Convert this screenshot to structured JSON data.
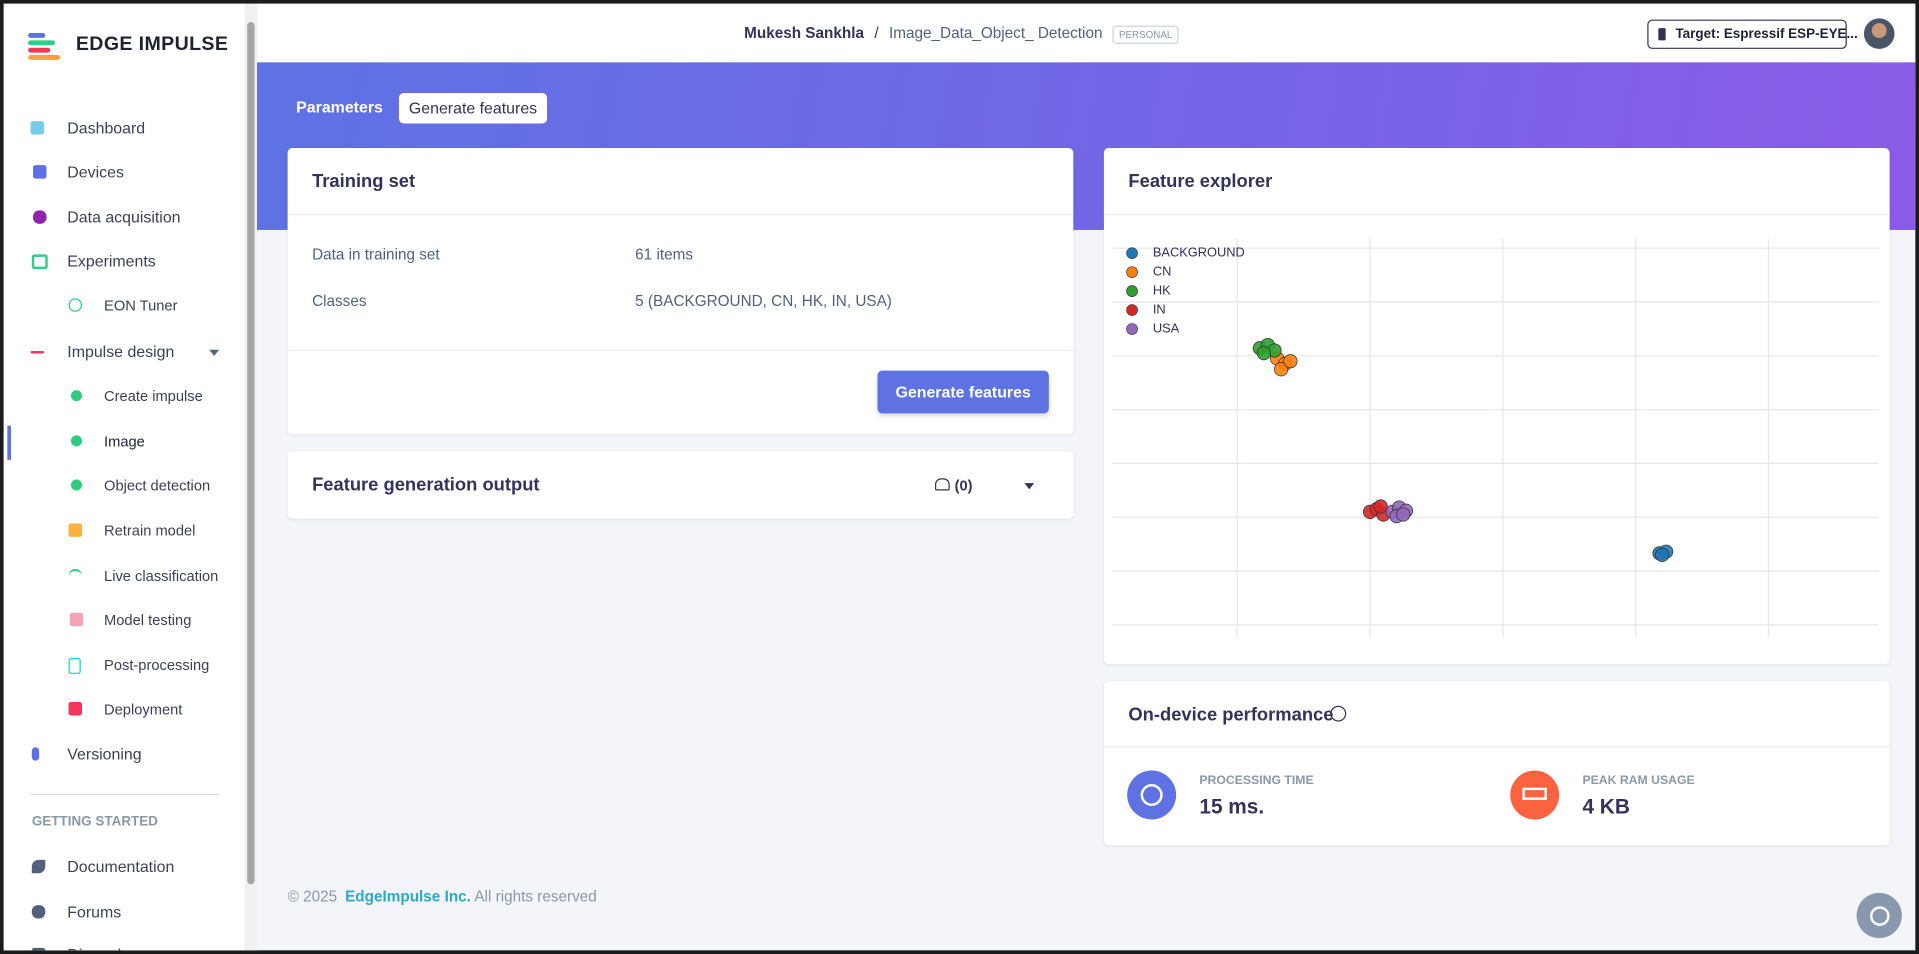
{
  "sidebar": {
    "brand": "EDGE IMPULSE",
    "nav": [
      "Dashboard",
      "Devices",
      "Data acquisition",
      "Experiments",
      "EON Tuner",
      "Impulse design",
      "Create impulse",
      "Image",
      "Object detection",
      "Retrain model",
      "Live classification",
      "Model testing",
      "Post-processing",
      "Deployment",
      "Versioning"
    ],
    "section_title": "GETTING STARTED",
    "help": [
      "Documentation",
      "Forums",
      "Discord"
    ]
  },
  "header": {
    "user": "Mukesh Sankhla",
    "separator": "/",
    "project": "Image_Data_Object_ Detection",
    "badge": "PERSONAL",
    "target": "Target: Espressif ESP-EYE..."
  },
  "tabs": [
    "Parameters",
    "Generate features"
  ],
  "training_set": {
    "title": "Training set",
    "rows": [
      [
        "Data in training set",
        "61 items"
      ],
      [
        "Classes",
        "5 (BACKGROUND, CN, HK, IN, USA)"
      ]
    ],
    "button": "Generate features"
  },
  "output": {
    "title": "Feature generation output",
    "count": "(0)"
  },
  "chart_data": {
    "type": "scatter",
    "title": "Feature explorer",
    "xlim": [
      -0.94,
      4.83
    ],
    "ylim": [
      -0.23,
      7.18
    ],
    "xticks": [
      0,
      1,
      2,
      3,
      4
    ],
    "yticks": [
      0,
      1,
      2,
      3,
      4,
      5,
      6,
      7
    ],
    "grid": true,
    "legend": "upper left",
    "series": [
      {
        "name": "BACKGROUND",
        "color": "#1f77b4",
        "x": [
          3.18,
          3.23,
          3.2
        ],
        "values": [
          1.33,
          1.36,
          1.3
        ]
      },
      {
        "name": "CN",
        "color": "#ff7f0e",
        "x": [
          0.3,
          0.36,
          0.33,
          0.4
        ],
        "values": [
          4.95,
          4.85,
          4.75,
          4.9
        ]
      },
      {
        "name": "HK",
        "color": "#2ca02c",
        "x": [
          0.17,
          0.23,
          0.28,
          0.2
        ],
        "values": [
          5.14,
          5.2,
          5.1,
          5.05
        ]
      },
      {
        "name": "IN",
        "color": "#d62728",
        "x": [
          1.0,
          1.05,
          1.1,
          1.08
        ],
        "values": [
          2.1,
          2.15,
          2.05,
          2.2
        ]
      },
      {
        "name": "USA",
        "color": "#9467bd",
        "x": [
          1.17,
          1.22,
          1.27,
          1.2,
          1.25
        ],
        "values": [
          2.1,
          2.18,
          2.12,
          2.02,
          2.05
        ]
      }
    ]
  },
  "performance": {
    "title": "On-device performance",
    "metrics": [
      {
        "label": "PROCESSING TIME",
        "value": "15 ms."
      },
      {
        "label": "PEAK RAM USAGE",
        "value": "4 KB"
      }
    ]
  },
  "footer": {
    "copyright": "© 2025",
    "company": "EdgeImpulse Inc.",
    "rights": "All rights reserved"
  }
}
